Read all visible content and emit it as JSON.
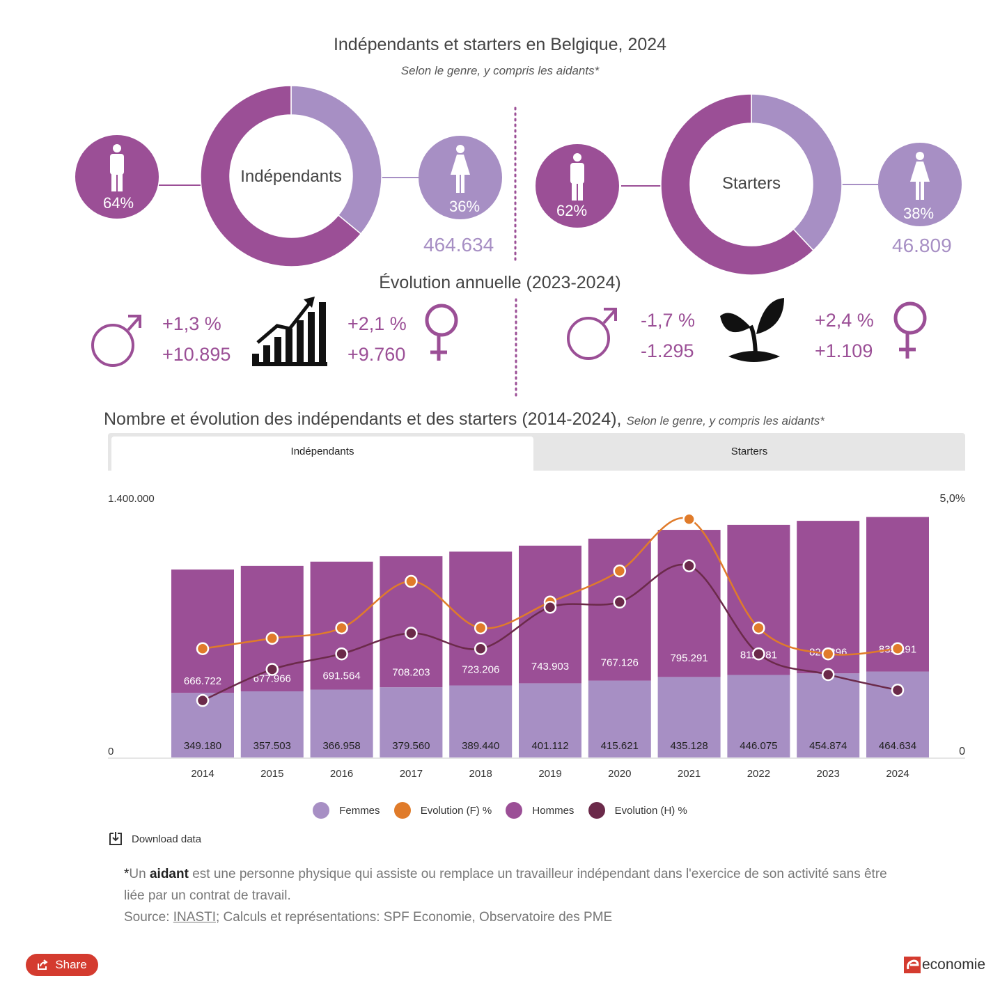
{
  "header": {
    "title": "Indépendants et starters en Belgique, 2024",
    "subtitle": "Selon le genre, y compris les aidants*"
  },
  "donuts": [
    {
      "label": "Indépendants",
      "men_pct": "64%",
      "women_pct": "36%",
      "women_share": 0.36,
      "total_women": "464.634"
    },
    {
      "label": "Starters",
      "men_pct": "62%",
      "women_pct": "38%",
      "women_share": 0.38,
      "total_women": "46.809"
    }
  ],
  "evolution": {
    "title": "Évolution annuelle (2023-2024)",
    "independants": {
      "men_pct": "+1,3 %",
      "men_abs": "+10.895",
      "women_pct": "+2,1 %",
      "women_abs": "+9.760"
    },
    "starters": {
      "men_pct": "-1,7 %",
      "men_abs": "-1.295",
      "women_pct": "+2,4 %",
      "women_abs": "+1.109"
    }
  },
  "section": {
    "title": "Nombre et évolution des indépendants et des starters (2014-2024),",
    "subtitle": "Selon le genre, y compris les aidants*"
  },
  "tabs": [
    "Indépendants",
    "Starters"
  ],
  "colors": {
    "femmes": "#a78fc4",
    "hommes": "#9b4f96",
    "evo_f": "#e07b2a",
    "evo_h": "#6b2a4a",
    "accent": "#9b4f96"
  },
  "chart_data": {
    "type": "bar",
    "stacked": true,
    "categories": [
      "2014",
      "2015",
      "2016",
      "2017",
      "2018",
      "2019",
      "2020",
      "2021",
      "2022",
      "2023",
      "2024"
    ],
    "series": [
      {
        "name": "Femmes",
        "values": [
          349180,
          357503,
          366958,
          379560,
          389440,
          401112,
          415621,
          435128,
          446075,
          454874,
          464634
        ],
        "labels": [
          "349.180",
          "357.503",
          "366.958",
          "379.560",
          "389.440",
          "401.112",
          "415.621",
          "435.128",
          "446.075",
          "454.874",
          "464.634"
        ]
      },
      {
        "name": "Hommes",
        "values": [
          666722,
          677966,
          691564,
          708203,
          723206,
          743903,
          767126,
          795291,
          811281,
          824296,
          835191
        ],
        "labels": [
          "666.722",
          "677.966",
          "691.564",
          "708.203",
          "723.206",
          "743.903",
          "767.126",
          "795.291",
          "811.281",
          "824.296",
          "835.191"
        ]
      },
      {
        "name": "Evolution (F) %",
        "type": "line",
        "axis": "right",
        "values": [
          2.1,
          2.3,
          2.5,
          3.4,
          2.5,
          3.0,
          3.6,
          4.6,
          2.5,
          2.0,
          2.1
        ]
      },
      {
        "name": "Evolution (H) %",
        "type": "line",
        "axis": "right",
        "values": [
          1.1,
          1.7,
          2.0,
          2.4,
          2.1,
          2.9,
          3.0,
          3.7,
          2.0,
          1.6,
          1.3
        ]
      }
    ],
    "y_left": {
      "min": 0,
      "max": 1400000,
      "ticks": [
        "0",
        "1.400.000"
      ]
    },
    "y_right": {
      "min": 0,
      "max": 5.0,
      "ticks": [
        "0",
        "5,0%"
      ]
    },
    "legend": [
      "Femmes",
      "Evolution (F) %",
      "Hommes",
      "Evolution (H) %"
    ]
  },
  "download_label": "Download data",
  "footnote": {
    "star": "*",
    "pre": "Un ",
    "term": "aidant",
    "text": " est une personne physique qui assiste ou remplace un travailleur indépendant dans l'exercice de son activité sans être liée par un contrat de travail.",
    "source_label": "Source: ",
    "source_link": "INASTI",
    "source_rest": "; Calculs et représentations: SPF Economie, Observatoire des PME"
  },
  "share_label": "Share",
  "brand": "economie"
}
